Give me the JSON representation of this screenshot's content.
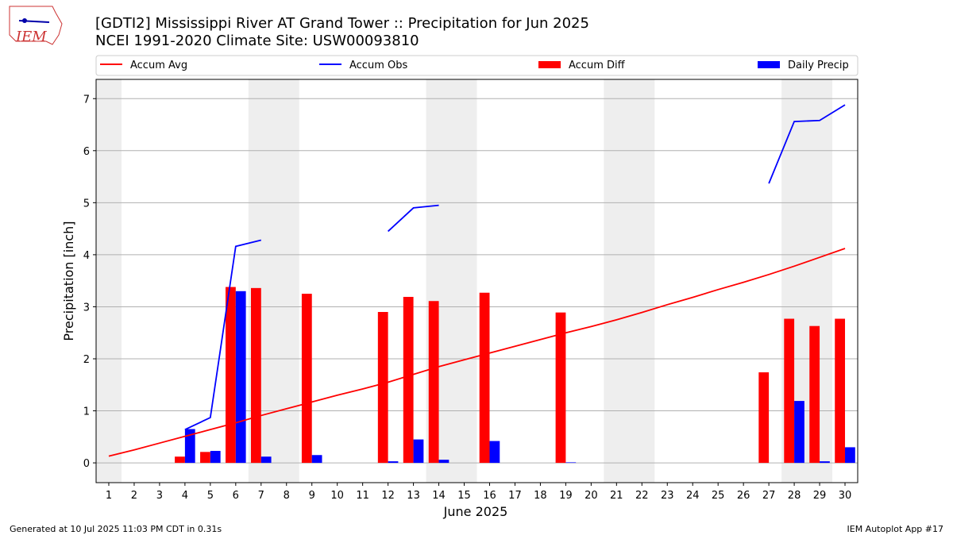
{
  "logo_text": "IEM",
  "chart_data": {
    "type": "bar-line",
    "title": "[GDTI2] Mississippi River  AT Grand Tower :: Precipitation for Jun 2025",
    "subtitle": "NCEI 1991-2020 Climate Site: USW00093810",
    "xlabel": "June 2025",
    "ylabel": "Precipitation [inch]",
    "x": [
      1,
      2,
      3,
      4,
      5,
      6,
      7,
      8,
      9,
      10,
      11,
      12,
      13,
      14,
      15,
      16,
      17,
      18,
      19,
      20,
      21,
      22,
      23,
      24,
      25,
      26,
      27,
      28,
      29,
      30
    ],
    "xlim": [
      0.5,
      30.5
    ],
    "xticks": [
      1,
      2,
      3,
      4,
      5,
      6,
      7,
      8,
      9,
      10,
      11,
      12,
      13,
      14,
      15,
      16,
      17,
      18,
      19,
      20,
      21,
      22,
      23,
      24,
      25,
      26,
      27,
      28,
      29,
      30
    ],
    "ylim": [
      -0.38,
      7.37
    ],
    "yticks": [
      0,
      1,
      2,
      3,
      4,
      5,
      6,
      7
    ],
    "grid": true,
    "shaded_spans": [
      [
        0.5,
        1.5
      ],
      [
        6.5,
        8.5
      ],
      [
        13.5,
        15.5
      ],
      [
        20.5,
        22.5
      ],
      [
        27.5,
        29.5
      ]
    ],
    "shade_color": "#eeeeee",
    "series": [
      {
        "name": "Accum Avg",
        "kind": "line",
        "color": "#ff0000",
        "values": [
          0.13,
          0.25,
          0.38,
          0.51,
          0.64,
          0.77,
          0.91,
          1.04,
          1.17,
          1.3,
          1.42,
          1.55,
          1.7,
          1.85,
          1.98,
          2.11,
          2.24,
          2.37,
          2.5,
          2.62,
          2.75,
          2.89,
          3.04,
          3.18,
          3.33,
          3.47,
          3.62,
          3.78,
          3.95,
          4.12
        ]
      },
      {
        "name": "Accum Obs",
        "kind": "line",
        "color": "#0000ff",
        "values": [
          null,
          null,
          null,
          0.64,
          0.87,
          4.16,
          4.28,
          null,
          null,
          null,
          null,
          4.45,
          4.9,
          4.95,
          null,
          null,
          null,
          null,
          null,
          null,
          null,
          null,
          null,
          null,
          null,
          null,
          5.37,
          6.56,
          6.58,
          6.88
        ]
      },
      {
        "name": "Accum Diff",
        "kind": "bar",
        "offset": -1,
        "color": "#ff0000",
        "values": [
          null,
          null,
          null,
          0.12,
          0.21,
          3.38,
          3.36,
          null,
          3.25,
          null,
          null,
          2.9,
          3.19,
          3.11,
          null,
          3.27,
          null,
          null,
          2.89,
          null,
          null,
          null,
          null,
          null,
          null,
          null,
          1.74,
          2.77,
          2.63,
          2.77
        ]
      },
      {
        "name": "Daily Precip",
        "kind": "bar",
        "offset": 0,
        "color": "#0000ff",
        "values": [
          null,
          null,
          null,
          0.65,
          0.23,
          3.3,
          0.12,
          null,
          0.15,
          null,
          null,
          0.03,
          0.45,
          0.06,
          null,
          0.42,
          null,
          null,
          0.01,
          null,
          null,
          null,
          null,
          null,
          null,
          null,
          null,
          1.19,
          0.03,
          0.3
        ]
      }
    ],
    "footer_left": "Generated at 10 Jul 2025 11:03 PM CDT in 0.31s",
    "footer_right": "IEM Autoplot App #17"
  }
}
